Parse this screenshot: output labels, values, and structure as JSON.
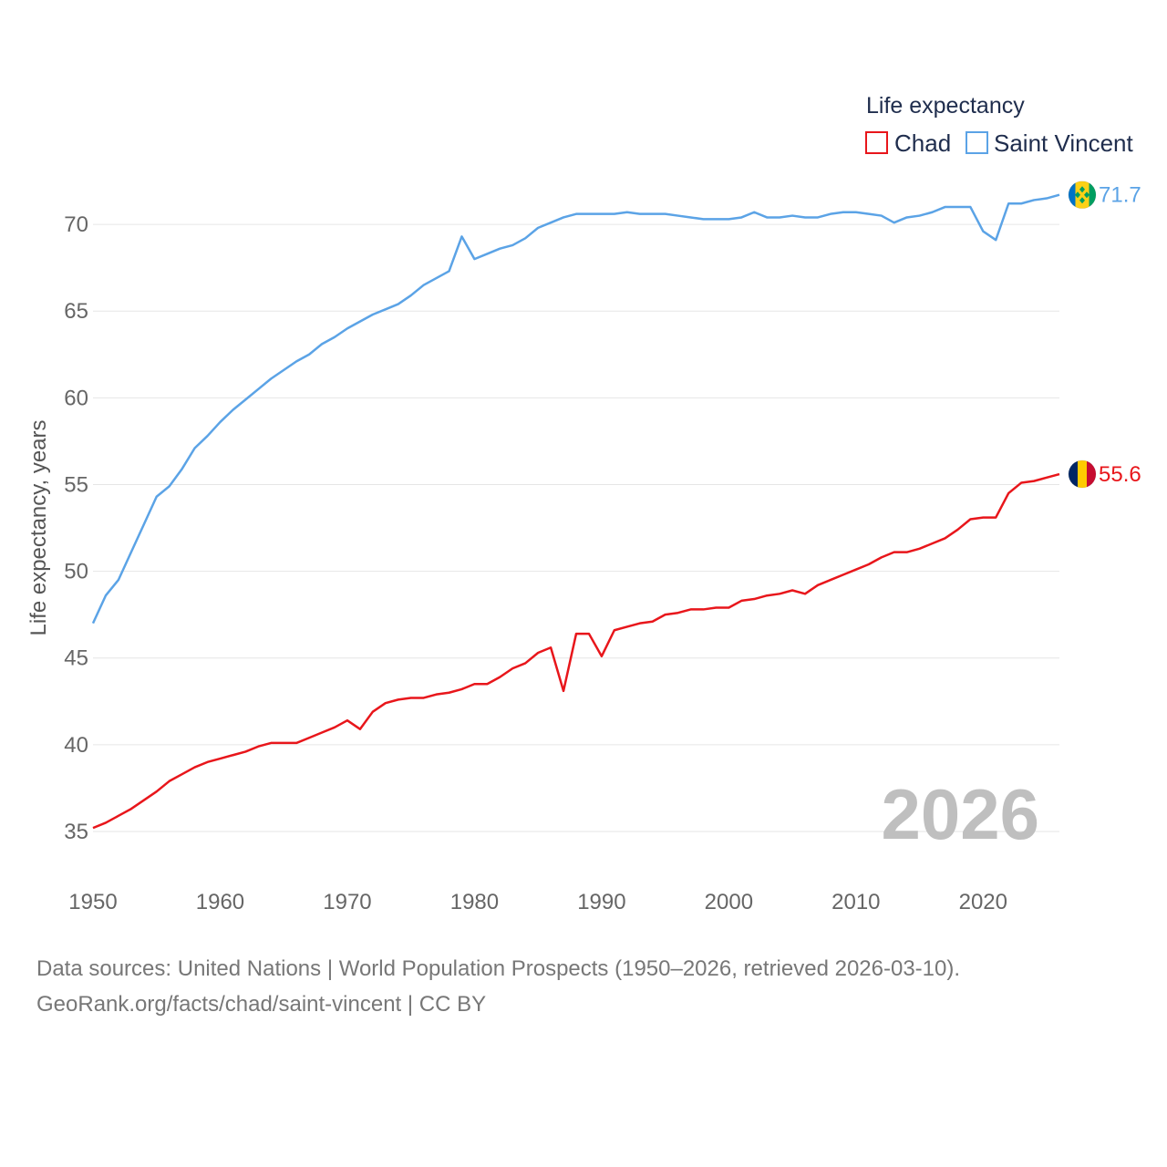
{
  "chart_data": {
    "type": "line",
    "title": "",
    "xlabel": "",
    "ylabel": "Life expectancy, years",
    "xlim": [
      1950,
      2026
    ],
    "ylim": [
      33,
      73
    ],
    "x_ticks": [
      1950,
      1960,
      1970,
      1980,
      1990,
      2000,
      2010,
      2020
    ],
    "y_ticks": [
      35,
      40,
      45,
      50,
      55,
      60,
      65,
      70
    ],
    "legend_title": "Life expectancy",
    "legend_position": "top-right",
    "watermark_year": "2026",
    "x": [
      1950,
      1951,
      1952,
      1953,
      1954,
      1955,
      1956,
      1957,
      1958,
      1959,
      1960,
      1961,
      1962,
      1963,
      1964,
      1965,
      1966,
      1967,
      1968,
      1969,
      1970,
      1971,
      1972,
      1973,
      1974,
      1975,
      1976,
      1977,
      1978,
      1979,
      1980,
      1981,
      1982,
      1983,
      1984,
      1985,
      1986,
      1987,
      1988,
      1989,
      1990,
      1991,
      1992,
      1993,
      1994,
      1995,
      1996,
      1997,
      1998,
      1999,
      2000,
      2001,
      2002,
      2003,
      2004,
      2005,
      2006,
      2007,
      2008,
      2009,
      2010,
      2011,
      2012,
      2013,
      2014,
      2015,
      2016,
      2017,
      2018,
      2019,
      2020,
      2021,
      2022,
      2023,
      2024,
      2025,
      2026
    ],
    "series": [
      {
        "name": "Chad",
        "color": "#e8161b",
        "end_label": "55.6",
        "flag": "chad-flag-icon",
        "values": [
          35.2,
          35.5,
          35.9,
          36.3,
          36.8,
          37.3,
          37.9,
          38.3,
          38.7,
          39.0,
          39.2,
          39.4,
          39.6,
          39.9,
          40.1,
          40.1,
          40.1,
          40.4,
          40.7,
          41.0,
          41.4,
          40.9,
          41.9,
          42.4,
          42.6,
          42.7,
          42.7,
          42.9,
          43.0,
          43.2,
          43.5,
          43.5,
          43.9,
          44.4,
          44.7,
          45.3,
          45.6,
          43.1,
          46.4,
          46.4,
          45.1,
          46.6,
          46.8,
          47.0,
          47.1,
          47.5,
          47.6,
          47.8,
          47.8,
          47.9,
          47.9,
          48.3,
          48.4,
          48.6,
          48.7,
          48.9,
          48.7,
          49.2,
          49.5,
          49.8,
          50.1,
          50.4,
          50.8,
          51.1,
          51.1,
          51.3,
          51.6,
          51.9,
          52.4,
          53.0,
          53.1,
          53.1,
          54.5,
          55.1,
          55.2,
          55.4,
          55.6
        ]
      },
      {
        "name": "Saint Vincent",
        "color": "#5ba3e6",
        "end_label": "71.7",
        "flag": "saint-vincent-flag-icon",
        "values": [
          47.0,
          48.6,
          49.5,
          51.1,
          52.7,
          54.3,
          54.9,
          55.9,
          57.1,
          57.8,
          58.6,
          59.3,
          59.9,
          60.5,
          61.1,
          61.6,
          62.1,
          62.5,
          63.1,
          63.5,
          64.0,
          64.4,
          64.8,
          65.1,
          65.4,
          65.9,
          66.5,
          66.9,
          67.3,
          69.3,
          68.0,
          68.3,
          68.6,
          68.8,
          69.2,
          69.8,
          70.1,
          70.4,
          70.6,
          70.6,
          70.6,
          70.6,
          70.7,
          70.6,
          70.6,
          70.6,
          70.5,
          70.4,
          70.3,
          70.3,
          70.3,
          70.4,
          70.7,
          70.4,
          70.4,
          70.5,
          70.4,
          70.4,
          70.6,
          70.7,
          70.7,
          70.6,
          70.5,
          70.1,
          70.4,
          70.5,
          70.7,
          71.0,
          71.0,
          71.0,
          69.6,
          69.1,
          71.2,
          71.2,
          71.4,
          71.5,
          71.7
        ]
      }
    ]
  },
  "source": {
    "line1": "Data sources: United Nations | World Population Prospects (1950–2026, retrieved 2026-03-10).",
    "line2": "GeoRank.org/facts/chad/saint-vincent | CC BY"
  }
}
